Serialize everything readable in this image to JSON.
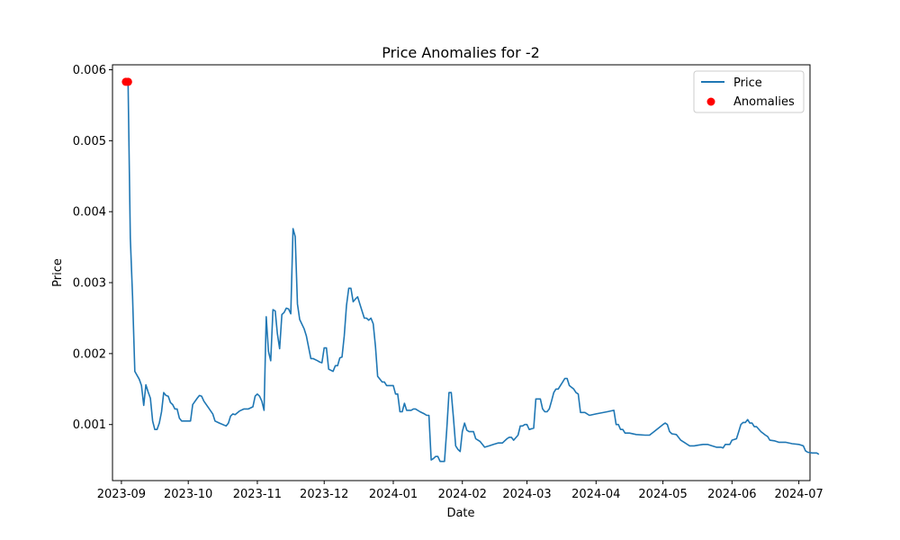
{
  "chart_data": {
    "type": "line",
    "title": "Price Anomalies for -2",
    "xlabel": "Date",
    "ylabel": "Price",
    "xlim": [
      "2023-08-28",
      "2024-07-06"
    ],
    "ylim": [
      0.00021,
      0.00607
    ],
    "grid": false,
    "legend_position": "top-right",
    "x_ticks": [
      "2023-09",
      "2023-10",
      "2023-11",
      "2023-12",
      "2024-01",
      "2024-02",
      "2024-03",
      "2024-04",
      "2024-05",
      "2024-06",
      "2024-07"
    ],
    "y_ticks": [
      "0.001",
      "0.002",
      "0.003",
      "0.004",
      "0.005",
      "0.006"
    ],
    "colors": {
      "line": "#1f77b4",
      "anomaly": "#ff0000"
    },
    "series": [
      {
        "name": "Price",
        "kind": "line",
        "points": [
          [
            "2023-09-03",
            0.00583
          ],
          [
            "2023-09-04",
            0.00583
          ],
          [
            "2023-09-05",
            0.00363
          ],
          [
            "2023-09-06",
            0.0028
          ],
          [
            "2023-09-07",
            0.00175
          ],
          [
            "2023-09-09",
            0.00164
          ],
          [
            "2023-09-10",
            0.00155
          ],
          [
            "2023-09-11",
            0.00127
          ],
          [
            "2023-09-12",
            0.00156
          ],
          [
            "2023-09-13",
            0.00146
          ],
          [
            "2023-09-14",
            0.00137
          ],
          [
            "2023-09-15",
            0.00105
          ],
          [
            "2023-09-16",
            0.00093
          ],
          [
            "2023-09-17",
            0.00093
          ],
          [
            "2023-09-18",
            0.00102
          ],
          [
            "2023-09-19",
            0.00118
          ],
          [
            "2023-09-20",
            0.00145
          ],
          [
            "2023-09-21",
            0.00141
          ],
          [
            "2023-09-22",
            0.0014
          ],
          [
            "2023-09-23",
            0.00131
          ],
          [
            "2023-09-24",
            0.00128
          ],
          [
            "2023-09-25",
            0.00122
          ],
          [
            "2023-09-26",
            0.00122
          ],
          [
            "2023-09-27",
            0.00109
          ],
          [
            "2023-09-28",
            0.00105
          ],
          [
            "2023-10-01",
            0.00105
          ],
          [
            "2023-10-02",
            0.00105
          ],
          [
            "2023-10-03",
            0.00128
          ],
          [
            "2023-10-05",
            0.00137
          ],
          [
            "2023-10-06",
            0.00141
          ],
          [
            "2023-10-07",
            0.0014
          ],
          [
            "2023-10-08",
            0.00133
          ],
          [
            "2023-10-10",
            0.00124
          ],
          [
            "2023-10-12",
            0.00115
          ],
          [
            "2023-10-13",
            0.00105
          ],
          [
            "2023-10-15",
            0.00102
          ],
          [
            "2023-10-18",
            0.00098
          ],
          [
            "2023-10-19",
            0.00102
          ],
          [
            "2023-10-20",
            0.00112
          ],
          [
            "2023-10-21",
            0.00115
          ],
          [
            "2023-10-22",
            0.00114
          ],
          [
            "2023-10-24",
            0.00119
          ],
          [
            "2023-10-26",
            0.00122
          ],
          [
            "2023-10-28",
            0.00122
          ],
          [
            "2023-10-30",
            0.00125
          ],
          [
            "2023-10-31",
            0.0014
          ],
          [
            "2023-11-01",
            0.00143
          ],
          [
            "2023-11-02",
            0.0014
          ],
          [
            "2023-11-03",
            0.00133
          ],
          [
            "2023-11-04",
            0.0012
          ],
          [
            "2023-11-05",
            0.00252
          ],
          [
            "2023-11-06",
            0.00203
          ],
          [
            "2023-11-07",
            0.0019
          ],
          [
            "2023-11-08",
            0.00262
          ],
          [
            "2023-11-09",
            0.0026
          ],
          [
            "2023-11-10",
            0.00228
          ],
          [
            "2023-11-11",
            0.00207
          ],
          [
            "2023-11-12",
            0.00255
          ],
          [
            "2023-11-13",
            0.00258
          ],
          [
            "2023-11-14",
            0.00264
          ],
          [
            "2023-11-15",
            0.00263
          ],
          [
            "2023-11-16",
            0.00256
          ],
          [
            "2023-11-17",
            0.00376
          ],
          [
            "2023-11-18",
            0.00365
          ],
          [
            "2023-11-19",
            0.0027
          ],
          [
            "2023-11-20",
            0.00248
          ],
          [
            "2023-11-22",
            0.00235
          ],
          [
            "2023-11-23",
            0.00225
          ],
          [
            "2023-11-25",
            0.00193
          ],
          [
            "2023-11-26",
            0.00193
          ],
          [
            "2023-11-28",
            0.0019
          ],
          [
            "2023-11-29",
            0.00188
          ],
          [
            "2023-11-30",
            0.00187
          ],
          [
            "2023-12-01",
            0.00208
          ],
          [
            "2023-12-02",
            0.00208
          ],
          [
            "2023-12-03",
            0.00178
          ],
          [
            "2023-12-05",
            0.00175
          ],
          [
            "2023-12-06",
            0.00183
          ],
          [
            "2023-12-07",
            0.00183
          ],
          [
            "2023-12-08",
            0.00194
          ],
          [
            "2023-12-09",
            0.00195
          ],
          [
            "2023-12-10",
            0.00225
          ],
          [
            "2023-12-11",
            0.00268
          ],
          [
            "2023-12-12",
            0.00292
          ],
          [
            "2023-12-13",
            0.00292
          ],
          [
            "2023-12-14",
            0.00273
          ],
          [
            "2023-12-15",
            0.00277
          ],
          [
            "2023-12-16",
            0.0028
          ],
          [
            "2023-12-17",
            0.0027
          ],
          [
            "2023-12-18",
            0.0026
          ],
          [
            "2023-12-19",
            0.0025
          ],
          [
            "2023-12-20",
            0.0025
          ],
          [
            "2023-12-21",
            0.00247
          ],
          [
            "2023-12-22",
            0.0025
          ],
          [
            "2023-12-23",
            0.00242
          ],
          [
            "2023-12-24",
            0.0021
          ],
          [
            "2023-12-25",
            0.00168
          ],
          [
            "2023-12-26",
            0.00164
          ],
          [
            "2023-12-27",
            0.0016
          ],
          [
            "2023-12-28",
            0.0016
          ],
          [
            "2023-12-29",
            0.00155
          ],
          [
            "2023-12-30",
            0.00155
          ],
          [
            "2023-12-31",
            0.00155
          ],
          [
            "2024-01-01",
            0.00155
          ],
          [
            "2024-01-02",
            0.00143
          ],
          [
            "2024-01-03",
            0.00143
          ],
          [
            "2024-01-04",
            0.00118
          ],
          [
            "2024-01-05",
            0.00118
          ],
          [
            "2024-01-06",
            0.0013
          ],
          [
            "2024-01-07",
            0.0012
          ],
          [
            "2024-01-09",
            0.0012
          ],
          [
            "2024-01-10",
            0.00122
          ],
          [
            "2024-01-11",
            0.00122
          ],
          [
            "2024-01-13",
            0.00118
          ],
          [
            "2024-01-15",
            0.00115
          ],
          [
            "2024-01-16",
            0.00113
          ],
          [
            "2024-01-17",
            0.00113
          ],
          [
            "2024-01-18",
            0.0005
          ],
          [
            "2024-01-19",
            0.00052
          ],
          [
            "2024-01-20",
            0.00055
          ],
          [
            "2024-01-21",
            0.00055
          ],
          [
            "2024-01-22",
            0.00048
          ],
          [
            "2024-01-23",
            0.00048
          ],
          [
            "2024-01-24",
            0.00048
          ],
          [
            "2024-01-25",
            0.00093
          ],
          [
            "2024-01-26",
            0.00145
          ],
          [
            "2024-01-27",
            0.00145
          ],
          [
            "2024-01-28",
            0.0011
          ],
          [
            "2024-01-29",
            0.0007
          ],
          [
            "2024-01-30",
            0.00065
          ],
          [
            "2024-01-31",
            0.00062
          ],
          [
            "2024-02-01",
            0.0009
          ],
          [
            "2024-02-02",
            0.00102
          ],
          [
            "2024-02-03",
            0.00092
          ],
          [
            "2024-02-04",
            0.0009
          ],
          [
            "2024-02-05",
            0.0009
          ],
          [
            "2024-02-06",
            0.0009
          ],
          [
            "2024-02-07",
            0.0008
          ],
          [
            "2024-02-08",
            0.00078
          ],
          [
            "2024-02-09",
            0.00076
          ],
          [
            "2024-02-11",
            0.00068
          ],
          [
            "2024-02-13",
            0.0007
          ],
          [
            "2024-02-15",
            0.00072
          ],
          [
            "2024-02-17",
            0.00074
          ],
          [
            "2024-02-19",
            0.00074
          ],
          [
            "2024-02-20",
            0.00077
          ],
          [
            "2024-02-21",
            0.0008
          ],
          [
            "2024-02-22",
            0.00082
          ],
          [
            "2024-02-23",
            0.00082
          ],
          [
            "2024-02-24",
            0.00078
          ],
          [
            "2024-02-26",
            0.00085
          ],
          [
            "2024-02-27",
            0.00098
          ],
          [
            "2024-02-28",
            0.00098
          ],
          [
            "2024-02-29",
            0.001
          ],
          [
            "2024-03-01",
            0.001
          ],
          [
            "2024-03-02",
            0.00093
          ],
          [
            "2024-03-04",
            0.00095
          ],
          [
            "2024-03-05",
            0.00136
          ],
          [
            "2024-03-07",
            0.00136
          ],
          [
            "2024-03-08",
            0.00122
          ],
          [
            "2024-03-09",
            0.00118
          ],
          [
            "2024-03-10",
            0.00118
          ],
          [
            "2024-03-11",
            0.00122
          ],
          [
            "2024-03-12",
            0.00133
          ],
          [
            "2024-03-13",
            0.00145
          ],
          [
            "2024-03-14",
            0.0015
          ],
          [
            "2024-03-15",
            0.0015
          ],
          [
            "2024-03-17",
            0.0016
          ],
          [
            "2024-03-18",
            0.00165
          ],
          [
            "2024-03-19",
            0.00165
          ],
          [
            "2024-03-20",
            0.00155
          ],
          [
            "2024-03-22",
            0.0015
          ],
          [
            "2024-03-23",
            0.00145
          ],
          [
            "2024-03-24",
            0.00143
          ],
          [
            "2024-03-25",
            0.00117
          ],
          [
            "2024-03-27",
            0.00117
          ],
          [
            "2024-03-29",
            0.00113
          ],
          [
            "2024-04-01",
            0.00115
          ],
          [
            "2024-04-06",
            0.00118
          ],
          [
            "2024-04-09",
            0.0012
          ],
          [
            "2024-04-10",
            0.001
          ],
          [
            "2024-04-11",
            0.001
          ],
          [
            "2024-04-12",
            0.00093
          ],
          [
            "2024-04-13",
            0.00093
          ],
          [
            "2024-04-14",
            0.00088
          ],
          [
            "2024-04-16",
            0.00088
          ],
          [
            "2024-04-19",
            0.00086
          ],
          [
            "2024-04-23",
            0.00085
          ],
          [
            "2024-04-25",
            0.00085
          ],
          [
            "2024-04-27",
            0.0009
          ],
          [
            "2024-05-01",
            0.001
          ],
          [
            "2024-05-02",
            0.00102
          ],
          [
            "2024-05-03",
            0.001
          ],
          [
            "2024-05-04",
            0.0009
          ],
          [
            "2024-05-05",
            0.00087
          ],
          [
            "2024-05-07",
            0.00086
          ],
          [
            "2024-05-08",
            0.00082
          ],
          [
            "2024-05-09",
            0.00078
          ],
          [
            "2024-05-11",
            0.00074
          ],
          [
            "2024-05-13",
            0.0007
          ],
          [
            "2024-05-15",
            0.0007
          ],
          [
            "2024-05-17",
            0.00071
          ],
          [
            "2024-05-19",
            0.00072
          ],
          [
            "2024-05-21",
            0.00072
          ],
          [
            "2024-05-23",
            0.0007
          ],
          [
            "2024-05-25",
            0.00068
          ],
          [
            "2024-05-27",
            0.00068
          ],
          [
            "2024-05-28",
            0.00067
          ],
          [
            "2024-05-29",
            0.00072
          ],
          [
            "2024-05-31",
            0.00072
          ],
          [
            "2024-06-01",
            0.00078
          ],
          [
            "2024-06-03",
            0.0008
          ],
          [
            "2024-06-04",
            0.0009
          ],
          [
            "2024-06-05",
            0.001
          ],
          [
            "2024-06-06",
            0.00103
          ],
          [
            "2024-06-07",
            0.00103
          ],
          [
            "2024-06-08",
            0.00107
          ],
          [
            "2024-06-09",
            0.00102
          ],
          [
            "2024-06-10",
            0.00102
          ],
          [
            "2024-06-11",
            0.00097
          ],
          [
            "2024-06-12",
            0.00097
          ],
          [
            "2024-06-14",
            0.0009
          ],
          [
            "2024-06-16",
            0.00085
          ],
          [
            "2024-06-17",
            0.00083
          ],
          [
            "2024-06-18",
            0.00078
          ],
          [
            "2024-06-20",
            0.00077
          ],
          [
            "2024-06-22",
            0.00075
          ],
          [
            "2024-06-25",
            0.00075
          ],
          [
            "2024-06-28",
            0.00073
          ],
          [
            "2024-07-01",
            0.00072
          ],
          [
            "2024-07-03",
            0.0007
          ],
          [
            "2024-07-04",
            0.00063
          ],
          [
            "2024-07-05",
            0.00061
          ],
          [
            "2024-07-07",
            0.0006
          ],
          [
            "2024-07-09",
            0.0006
          ],
          [
            "2024-07-10",
            0.00058
          ]
        ]
      },
      {
        "name": "Anomalies",
        "kind": "scatter",
        "points": [
          [
            "2023-09-03",
            0.00583
          ],
          [
            "2023-09-04",
            0.00583
          ]
        ]
      }
    ]
  }
}
